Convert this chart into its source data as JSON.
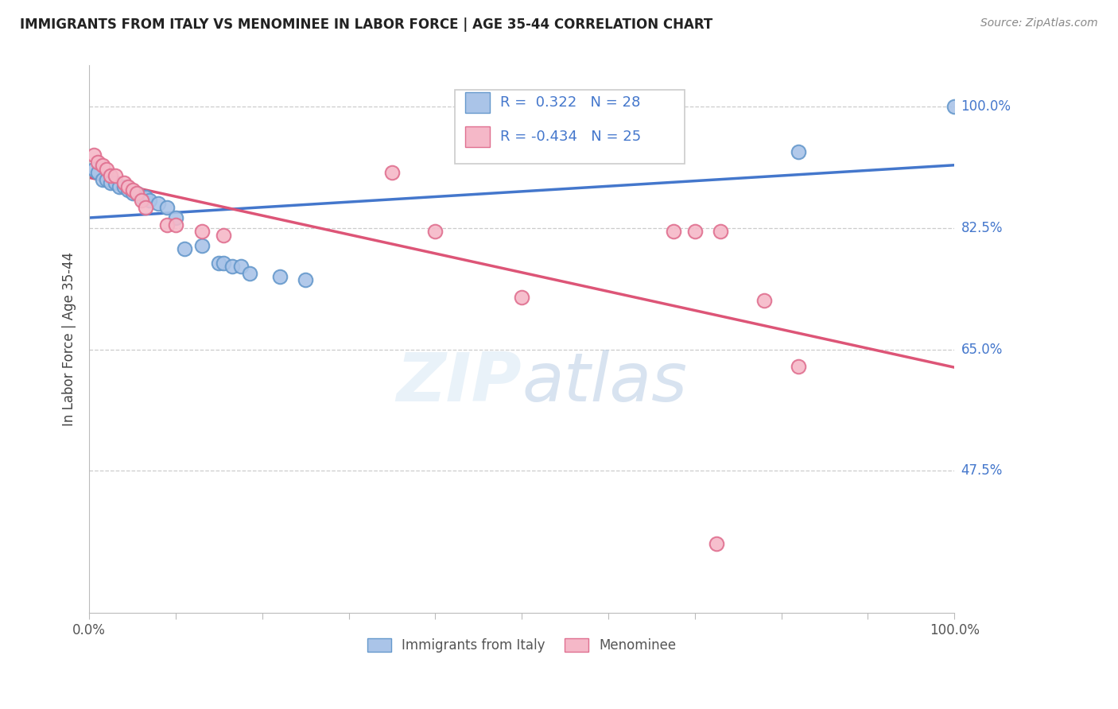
{
  "title": "IMMIGRANTS FROM ITALY VS MENOMINEE IN LABOR FORCE | AGE 35-44 CORRELATION CHART",
  "source_text": "Source: ZipAtlas.com",
  "ylabel": "In Labor Force | Age 35-44",
  "xlim": [
    0.0,
    1.0
  ],
  "ylim": [
    0.27,
    1.06
  ],
  "x_tick_positions": [
    0.0,
    0.1,
    0.2,
    0.3,
    0.4,
    0.5,
    0.6,
    0.7,
    0.8,
    0.9,
    1.0
  ],
  "x_tick_labels_show": [
    "0.0%",
    "",
    "",
    "",
    "",
    "",
    "",
    "",
    "",
    "",
    "100.0%"
  ],
  "y_tick_values": [
    0.475,
    0.65,
    0.825,
    1.0
  ],
  "y_tick_labels_right": [
    "47.5%",
    "65.0%",
    "82.5%",
    "100.0%"
  ],
  "background_color": "#ffffff",
  "grid_color": "#cccccc",
  "italy_fill_color": "#aac4e8",
  "italy_edge_color": "#6699cc",
  "menominee_fill_color": "#f5b8c8",
  "menominee_edge_color": "#e07090",
  "italy_R": "0.322",
  "italy_N": "28",
  "menominee_R": "-0.434",
  "menominee_N": "25",
  "italy_line_color": "#4477cc",
  "menominee_line_color": "#dd5577",
  "legend_label_italy": "Immigrants from Italy",
  "legend_label_menominee": "Menominee",
  "italy_x": [
    0.005,
    0.01,
    0.015,
    0.02,
    0.025,
    0.03,
    0.035,
    0.04,
    0.045,
    0.05,
    0.055,
    0.06,
    0.065,
    0.07,
    0.08,
    0.09,
    0.1,
    0.11,
    0.13,
    0.15,
    0.155,
    0.165,
    0.175,
    0.185,
    0.22,
    0.25,
    0.82,
    1.0
  ],
  "italy_y": [
    0.91,
    0.905,
    0.895,
    0.895,
    0.89,
    0.89,
    0.885,
    0.885,
    0.88,
    0.875,
    0.875,
    0.87,
    0.87,
    0.865,
    0.86,
    0.855,
    0.84,
    0.795,
    0.8,
    0.775,
    0.775,
    0.77,
    0.77,
    0.76,
    0.755,
    0.75,
    0.935,
    1.0
  ],
  "menominee_x": [
    0.005,
    0.01,
    0.015,
    0.02,
    0.025,
    0.03,
    0.04,
    0.045,
    0.05,
    0.055,
    0.06,
    0.065,
    0.09,
    0.1,
    0.13,
    0.155,
    0.35,
    0.4,
    0.5,
    0.675,
    0.7,
    0.725,
    0.73,
    0.78,
    0.82
  ],
  "menominee_y": [
    0.93,
    0.92,
    0.915,
    0.91,
    0.9,
    0.9,
    0.89,
    0.885,
    0.88,
    0.875,
    0.865,
    0.855,
    0.83,
    0.83,
    0.82,
    0.815,
    0.905,
    0.82,
    0.725,
    0.82,
    0.82,
    0.37,
    0.82,
    0.72,
    0.625
  ]
}
